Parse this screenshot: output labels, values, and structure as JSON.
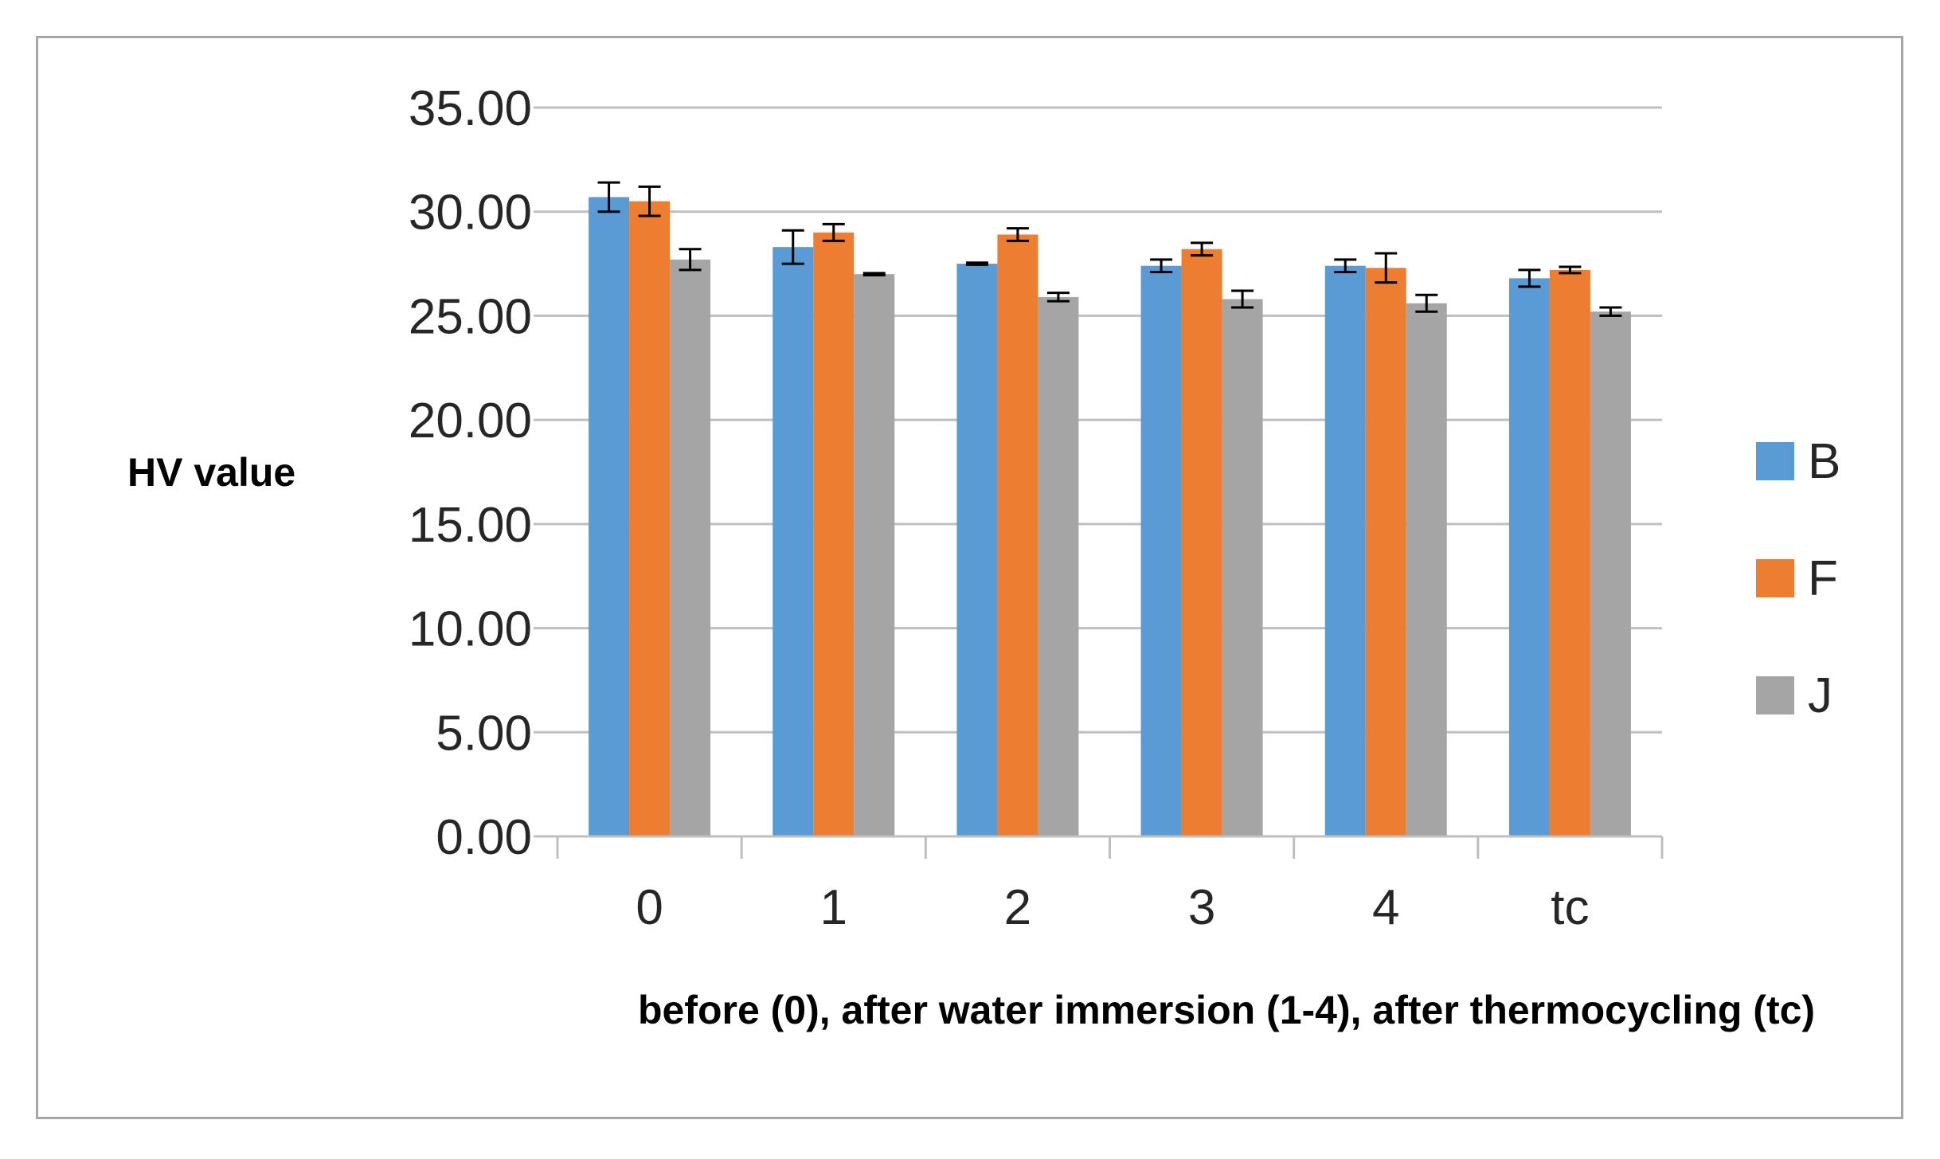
{
  "chart_data": {
    "type": "bar",
    "title": "",
    "ylabel": "HV value",
    "xlabel": "before (0), after water immersion (1-4), after thermocycling (tc)",
    "categories": [
      "0",
      "1",
      "2",
      "3",
      "4",
      "tc"
    ],
    "ylim": [
      0,
      35
    ],
    "ytick_labels": [
      "0.00",
      "5.00",
      "10.00",
      "15.00",
      "20.00",
      "25.00",
      "30.00",
      "35.00"
    ],
    "grid": true,
    "legend_position": "right",
    "series": [
      {
        "name": "B",
        "color": "#5b9bd5",
        "values": [
          30.7,
          28.3,
          27.5,
          27.4,
          27.4,
          26.8
        ],
        "errors": [
          0.7,
          0.8,
          0.05,
          0.3,
          0.3,
          0.4
        ]
      },
      {
        "name": "F",
        "color": "#ed7d31",
        "values": [
          30.5,
          29.0,
          28.9,
          28.2,
          27.3,
          27.2
        ],
        "errors": [
          0.7,
          0.4,
          0.3,
          0.3,
          0.7,
          0.15
        ]
      },
      {
        "name": "J",
        "color": "#a5a5a5",
        "values": [
          27.7,
          27.0,
          25.9,
          25.8,
          25.6,
          25.2
        ],
        "errors": [
          0.5,
          0.05,
          0.2,
          0.4,
          0.4,
          0.2
        ]
      }
    ]
  }
}
